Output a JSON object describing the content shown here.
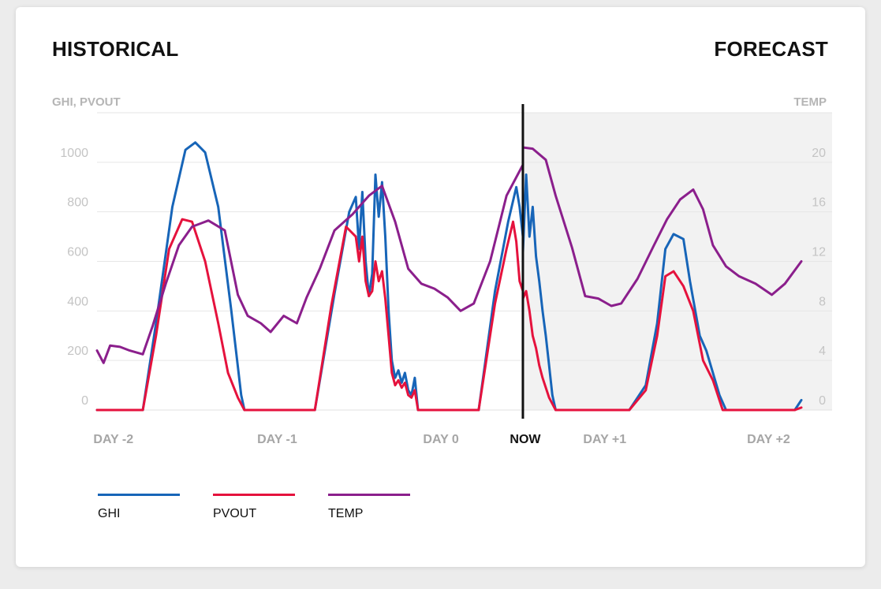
{
  "header": {
    "historical": "HISTORICAL",
    "forecast": "FORECAST"
  },
  "colors": {
    "ghi": "#1765b8",
    "pvout": "#e5123d",
    "temp": "#8b1f8c",
    "forecast_bg": "#f2f2f2"
  },
  "chart_data": {
    "type": "line",
    "left_axis": {
      "label": "GHI, PVOUT",
      "ticks": [
        0,
        200,
        400,
        600,
        800,
        1000
      ],
      "range": [
        0,
        1200
      ]
    },
    "right_axis": {
      "label": "TEMP",
      "ticks": [
        0,
        4,
        8,
        12,
        16,
        20
      ],
      "range": [
        0,
        24
      ]
    },
    "x_labels": [
      {
        "label": "DAY -2",
        "day": 0
      },
      {
        "label": "DAY -1",
        "day": 1
      },
      {
        "label": "DAY 0",
        "day": 2
      },
      {
        "label": "NOW",
        "day": 2.5
      },
      {
        "label": "DAY +1",
        "day": 3
      },
      {
        "label": "DAY +2",
        "day": 4
      }
    ],
    "x_range": [
      -0.1,
      4.2
    ],
    "now": 2.5,
    "series": [
      {
        "name": "GHI",
        "axis": "left",
        "points": [
          [
            -0.1,
            0
          ],
          [
            0.18,
            0
          ],
          [
            0.26,
            350
          ],
          [
            0.36,
            820
          ],
          [
            0.44,
            1050
          ],
          [
            0.5,
            1080
          ],
          [
            0.56,
            1040
          ],
          [
            0.64,
            820
          ],
          [
            0.72,
            400
          ],
          [
            0.78,
            60
          ],
          [
            0.8,
            0
          ],
          [
            1.23,
            0
          ],
          [
            1.35,
            470
          ],
          [
            1.44,
            800
          ],
          [
            1.48,
            860
          ],
          [
            1.5,
            650
          ],
          [
            1.52,
            880
          ],
          [
            1.54,
            600
          ],
          [
            1.56,
            460
          ],
          [
            1.58,
            550
          ],
          [
            1.6,
            950
          ],
          [
            1.62,
            780
          ],
          [
            1.64,
            920
          ],
          [
            1.66,
            700
          ],
          [
            1.68,
            400
          ],
          [
            1.7,
            200
          ],
          [
            1.72,
            130
          ],
          [
            1.74,
            160
          ],
          [
            1.76,
            110
          ],
          [
            1.78,
            150
          ],
          [
            1.8,
            80
          ],
          [
            1.82,
            60
          ],
          [
            1.84,
            130
          ],
          [
            1.86,
            0
          ],
          [
            2.23,
            0
          ],
          [
            2.33,
            480
          ],
          [
            2.41,
            760
          ],
          [
            2.46,
            900
          ],
          [
            2.48,
            820
          ],
          [
            2.5,
            700
          ],
          [
            2.5,
            640
          ],
          [
            2.52,
            950
          ],
          [
            2.54,
            700
          ],
          [
            2.56,
            820
          ],
          [
            2.58,
            620
          ],
          [
            2.6,
            520
          ],
          [
            2.62,
            400
          ],
          [
            2.64,
            300
          ],
          [
            2.66,
            180
          ],
          [
            2.68,
            60
          ],
          [
            2.7,
            0
          ],
          [
            3.15,
            0
          ],
          [
            3.25,
            100
          ],
          [
            3.32,
            350
          ],
          [
            3.37,
            650
          ],
          [
            3.42,
            710
          ],
          [
            3.48,
            690
          ],
          [
            3.52,
            520
          ],
          [
            3.58,
            300
          ],
          [
            3.62,
            240
          ],
          [
            3.66,
            150
          ],
          [
            3.7,
            60
          ],
          [
            3.74,
            0
          ],
          [
            4.16,
            0
          ],
          [
            4.2,
            40
          ]
        ]
      },
      {
        "name": "PVOUT",
        "axis": "left",
        "points": [
          [
            -0.1,
            0
          ],
          [
            0.18,
            0
          ],
          [
            0.26,
            300
          ],
          [
            0.34,
            650
          ],
          [
            0.42,
            770
          ],
          [
            0.48,
            760
          ],
          [
            0.56,
            600
          ],
          [
            0.64,
            350
          ],
          [
            0.7,
            150
          ],
          [
            0.76,
            50
          ],
          [
            0.8,
            0
          ],
          [
            1.23,
            0
          ],
          [
            1.33,
            420
          ],
          [
            1.42,
            740
          ],
          [
            1.48,
            700
          ],
          [
            1.5,
            600
          ],
          [
            1.52,
            700
          ],
          [
            1.54,
            520
          ],
          [
            1.56,
            460
          ],
          [
            1.58,
            480
          ],
          [
            1.6,
            600
          ],
          [
            1.62,
            520
          ],
          [
            1.64,
            560
          ],
          [
            1.66,
            450
          ],
          [
            1.68,
            300
          ],
          [
            1.7,
            150
          ],
          [
            1.72,
            100
          ],
          [
            1.74,
            120
          ],
          [
            1.76,
            90
          ],
          [
            1.78,
            110
          ],
          [
            1.8,
            60
          ],
          [
            1.82,
            50
          ],
          [
            1.84,
            80
          ],
          [
            1.86,
            0
          ],
          [
            2.23,
            0
          ],
          [
            2.33,
            430
          ],
          [
            2.4,
            650
          ],
          [
            2.44,
            760
          ],
          [
            2.46,
            680
          ],
          [
            2.48,
            520
          ],
          [
            2.5,
            480
          ],
          [
            2.5,
            450
          ],
          [
            2.52,
            480
          ],
          [
            2.54,
            400
          ],
          [
            2.56,
            300
          ],
          [
            2.58,
            250
          ],
          [
            2.6,
            180
          ],
          [
            2.62,
            130
          ],
          [
            2.66,
            50
          ],
          [
            2.7,
            0
          ],
          [
            3.15,
            0
          ],
          [
            3.25,
            80
          ],
          [
            3.32,
            300
          ],
          [
            3.37,
            540
          ],
          [
            3.42,
            560
          ],
          [
            3.48,
            500
          ],
          [
            3.54,
            400
          ],
          [
            3.6,
            200
          ],
          [
            3.66,
            120
          ],
          [
            3.72,
            0
          ],
          [
            4.16,
            0
          ],
          [
            4.2,
            10
          ]
        ]
      },
      {
        "name": "TEMP",
        "axis": "right",
        "points": [
          [
            -0.1,
            4.8
          ],
          [
            -0.06,
            3.8
          ],
          [
            -0.02,
            5.2
          ],
          [
            0.04,
            5.1
          ],
          [
            0.1,
            4.8
          ],
          [
            0.18,
            4.5
          ],
          [
            0.24,
            6.8
          ],
          [
            0.32,
            10.2
          ],
          [
            0.4,
            13.3
          ],
          [
            0.48,
            14.8
          ],
          [
            0.58,
            15.3
          ],
          [
            0.68,
            14.5
          ],
          [
            0.76,
            9.3
          ],
          [
            0.82,
            7.6
          ],
          [
            0.9,
            7.0
          ],
          [
            0.96,
            6.3
          ],
          [
            1.04,
            7.6
          ],
          [
            1.12,
            7.0
          ],
          [
            1.18,
            9.1
          ],
          [
            1.26,
            11.4
          ],
          [
            1.35,
            14.5
          ],
          [
            1.46,
            15.8
          ],
          [
            1.56,
            17.3
          ],
          [
            1.64,
            18.1
          ],
          [
            1.72,
            15.2
          ],
          [
            1.8,
            11.4
          ],
          [
            1.88,
            10.2
          ],
          [
            1.96,
            9.8
          ],
          [
            2.04,
            9.1
          ],
          [
            2.12,
            8.0
          ],
          [
            2.2,
            8.6
          ],
          [
            2.3,
            12.0
          ],
          [
            2.4,
            17.3
          ],
          [
            2.5,
            19.8
          ],
          [
            2.5,
            21.2
          ],
          [
            2.56,
            21.1
          ],
          [
            2.64,
            20.2
          ],
          [
            2.7,
            17.3
          ],
          [
            2.8,
            13.1
          ],
          [
            2.88,
            9.2
          ],
          [
            2.96,
            9.0
          ],
          [
            3.04,
            8.4
          ],
          [
            3.1,
            8.6
          ],
          [
            3.2,
            10.6
          ],
          [
            3.3,
            13.3
          ],
          [
            3.38,
            15.4
          ],
          [
            3.46,
            17.0
          ],
          [
            3.54,
            17.8
          ],
          [
            3.6,
            16.2
          ],
          [
            3.66,
            13.3
          ],
          [
            3.74,
            11.6
          ],
          [
            3.82,
            10.8
          ],
          [
            3.92,
            10.2
          ],
          [
            4.02,
            9.3
          ],
          [
            4.1,
            10.2
          ],
          [
            4.2,
            12.0
          ]
        ]
      }
    ]
  },
  "legend": {
    "items": [
      {
        "name": "GHI"
      },
      {
        "name": "PVOUT"
      },
      {
        "name": "TEMP"
      }
    ]
  }
}
